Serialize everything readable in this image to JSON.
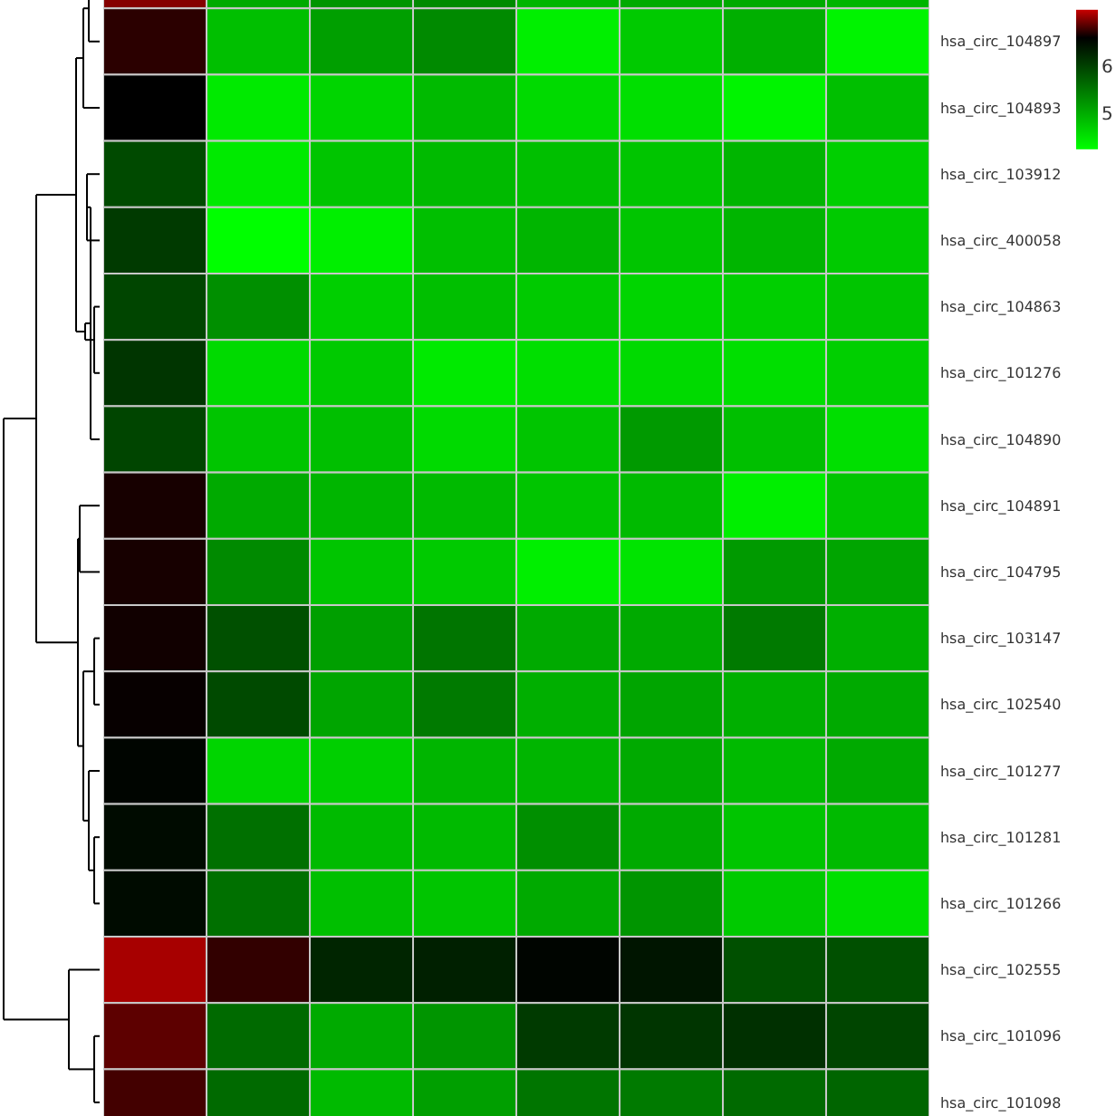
{
  "chart_data": {
    "type": "heatmap",
    "categories": [
      null,
      null,
      null,
      null,
      null,
      null,
      null,
      null
    ],
    "y_categories": [
      null,
      "hsa_circ_104897",
      "hsa_circ_104893",
      "hsa_circ_103912",
      "hsa_circ_400058",
      "hsa_circ_104863",
      "hsa_circ_101276",
      "hsa_circ_104890",
      "hsa_circ_104891",
      "hsa_circ_104795",
      "hsa_circ_103147",
      "hsa_circ_102540",
      "hsa_circ_101277",
      "hsa_circ_101281",
      "hsa_circ_101266",
      "hsa_circ_102555",
      "hsa_circ_101096",
      "hsa_circ_101098"
    ],
    "cells": [
      [
        7.0,
        5.0,
        5.2,
        5.3,
        4.9,
        5.0,
        5.0,
        4.9
      ],
      [
        6.73,
        4.8,
        5.1,
        5.3,
        4.35,
        4.7,
        4.95,
        4.3
      ],
      [
        6.6,
        4.4,
        4.6,
        4.85,
        4.55,
        4.5,
        4.3,
        4.8
      ],
      [
        5.9,
        4.4,
        4.75,
        4.85,
        4.8,
        4.75,
        4.9,
        4.65
      ],
      [
        6.05,
        4.2,
        4.35,
        4.8,
        4.9,
        4.75,
        4.9,
        4.7
      ],
      [
        5.95,
        5.25,
        4.65,
        4.8,
        4.7,
        4.6,
        4.65,
        4.75
      ],
      [
        6.1,
        4.55,
        4.7,
        4.4,
        4.5,
        4.55,
        4.5,
        4.65
      ],
      [
        5.95,
        4.75,
        4.8,
        4.55,
        4.75,
        5.15,
        4.8,
        4.5
      ],
      [
        6.67,
        5.0,
        4.9,
        4.85,
        4.75,
        4.85,
        4.35,
        4.75
      ],
      [
        6.67,
        5.3,
        4.75,
        4.7,
        4.35,
        4.45,
        5.15,
        5.05
      ],
      [
        6.65,
        5.85,
        5.1,
        5.5,
        5.0,
        5.0,
        5.45,
        4.95
      ],
      [
        6.62,
        5.9,
        5.05,
        5.45,
        4.95,
        5.05,
        4.95,
        5.0
      ],
      [
        6.55,
        4.6,
        4.65,
        4.9,
        4.9,
        5.0,
        4.85,
        5.0
      ],
      [
        6.5,
        5.55,
        4.85,
        4.85,
        5.25,
        5.0,
        4.75,
        4.85
      ],
      [
        6.5,
        5.55,
        4.8,
        4.75,
        5.0,
        5.2,
        4.7,
        4.5
      ],
      [
        7.1,
        6.75,
        6.25,
        6.3,
        6.55,
        6.4,
        5.85,
        5.85
      ],
      [
        6.88,
        5.6,
        5.0,
        5.2,
        6.05,
        6.1,
        6.15,
        5.95
      ],
      [
        6.8,
        5.6,
        4.85,
        5.1,
        5.5,
        5.45,
        5.6,
        5.65
      ]
    ],
    "clim": [
      4.2,
      7.2
    ],
    "cticks": [
      5,
      6
    ]
  }
}
